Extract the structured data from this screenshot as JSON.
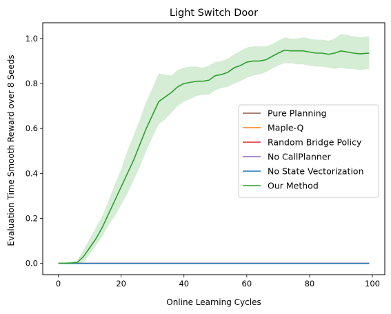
{
  "chart_data": {
    "type": "line",
    "title": "Light Switch Door",
    "xlabel": "Online Learning Cycles",
    "ylabel": "Evaluation Time Smooth Reward over 8 Seeds",
    "xlim": [
      -4.95,
      103.95
    ],
    "ylim": [
      -0.05,
      1.07
    ],
    "xticks": [
      0,
      20,
      40,
      60,
      80,
      100
    ],
    "yticks": [
      0.0,
      0.2,
      0.4,
      0.6,
      0.8,
      1.0
    ],
    "xtick_labels": [
      "0",
      "20",
      "40",
      "60",
      "80",
      "100"
    ],
    "ytick_labels": [
      "0.0",
      "0.2",
      "0.4",
      "0.6",
      "0.8",
      "1.0"
    ],
    "grid": false,
    "legend_position": "center-right",
    "series": [
      {
        "name": "Pure Planning",
        "color": "#8c564b",
        "x": [
          0,
          99
        ],
        "y": [
          0,
          0
        ]
      },
      {
        "name": "Maple-Q",
        "color": "#ff7f0e",
        "x": [
          0,
          99
        ],
        "y": [
          0,
          0
        ]
      },
      {
        "name": "Random Bridge Policy",
        "color": "#d62728",
        "x": [
          0,
          99
        ],
        "y": [
          0,
          0
        ]
      },
      {
        "name": "No CallPlanner",
        "color": "#9467bd",
        "x": [
          0,
          99
        ],
        "y": [
          0,
          0
        ]
      },
      {
        "name": "No State Vectorization",
        "color": "#1f77b4",
        "x": [
          0,
          99
        ],
        "y": [
          0,
          0
        ]
      },
      {
        "name": "Our Method",
        "color": "#2ca02c",
        "band_color": "#2ca02c",
        "x": [
          0,
          4,
          6,
          8,
          10,
          12,
          14,
          16,
          18,
          20,
          22,
          24,
          26,
          28,
          30,
          32,
          34,
          36,
          38,
          40,
          42,
          44,
          46,
          48,
          50,
          52,
          54,
          56,
          58,
          60,
          62,
          64,
          66,
          68,
          70,
          72,
          74,
          76,
          78,
          80,
          82,
          84,
          86,
          88,
          90,
          92,
          94,
          96,
          99
        ],
        "y": [
          0.0,
          0.002,
          0.004,
          0.03,
          0.07,
          0.11,
          0.16,
          0.22,
          0.28,
          0.34,
          0.4,
          0.46,
          0.53,
          0.6,
          0.66,
          0.72,
          0.74,
          0.76,
          0.785,
          0.8,
          0.805,
          0.81,
          0.81,
          0.815,
          0.835,
          0.84,
          0.85,
          0.87,
          0.88,
          0.895,
          0.9,
          0.9,
          0.905,
          0.92,
          0.935,
          0.948,
          0.945,
          0.945,
          0.945,
          0.94,
          0.935,
          0.935,
          0.93,
          0.935,
          0.945,
          0.94,
          0.935,
          0.932,
          0.935
        ],
        "lower": [
          0.0,
          0.0,
          0.0,
          0.005,
          0.04,
          0.08,
          0.12,
          0.17,
          0.21,
          0.26,
          0.31,
          0.37,
          0.43,
          0.5,
          0.56,
          0.62,
          0.64,
          0.67,
          0.7,
          0.72,
          0.73,
          0.745,
          0.75,
          0.75,
          0.77,
          0.78,
          0.785,
          0.8,
          0.81,
          0.825,
          0.835,
          0.84,
          0.85,
          0.865,
          0.88,
          0.89,
          0.89,
          0.885,
          0.885,
          0.88,
          0.875,
          0.875,
          0.87,
          0.865,
          0.87,
          0.865,
          0.865,
          0.86,
          0.865
        ],
        "upper": [
          0.0,
          0.006,
          0.012,
          0.06,
          0.11,
          0.16,
          0.21,
          0.28,
          0.35,
          0.42,
          0.5,
          0.57,
          0.64,
          0.72,
          0.78,
          0.845,
          0.84,
          0.835,
          0.86,
          0.87,
          0.875,
          0.875,
          0.87,
          0.88,
          0.895,
          0.9,
          0.91,
          0.93,
          0.945,
          0.96,
          0.965,
          0.965,
          0.965,
          0.975,
          0.99,
          1.005,
          1.0,
          1.0,
          1.005,
          1.0,
          0.995,
          0.995,
          0.99,
          1.0,
          1.02,
          1.015,
          1.01,
          1.005,
          1.01
        ]
      }
    ]
  }
}
